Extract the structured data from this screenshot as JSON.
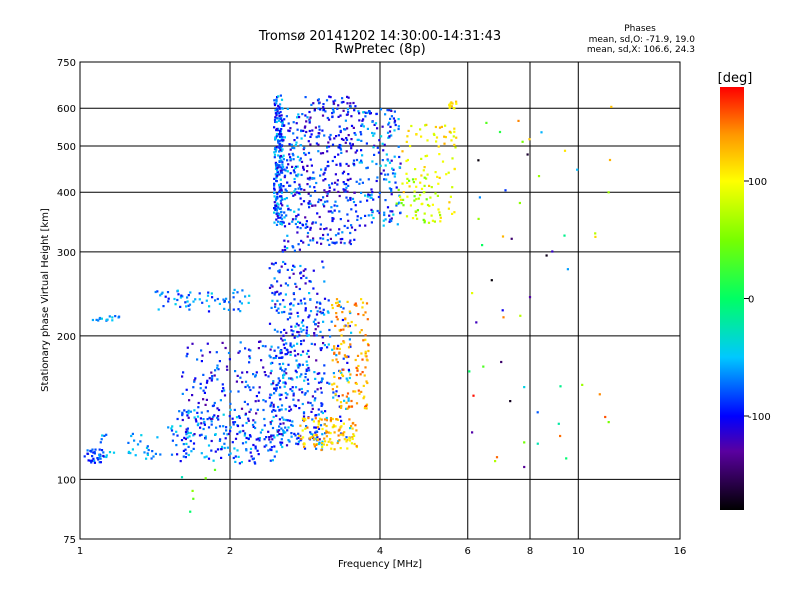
{
  "chart_data": {
    "type": "scatter",
    "title": "Tromsø 20141202 14:30:00-14:31:43",
    "subtitle": "RwPretec (8p)",
    "xlabel": "Frequency [MHz]",
    "ylabel": "Stationary phase Virtual Height [km]",
    "x_scale": "log",
    "y_scale": "log",
    "xlim": [
      1,
      16
    ],
    "ylim": [
      75,
      750
    ],
    "x_ticks": [
      1,
      2,
      4,
      6,
      8,
      10,
      16
    ],
    "y_ticks": [
      75,
      100,
      200,
      300,
      400,
      500,
      600,
      750
    ],
    "x_grid": [
      1,
      2,
      4,
      6,
      8,
      10,
      16
    ],
    "y_grid": [
      100,
      200,
      300,
      400,
      500,
      600,
      750
    ],
    "grid": true,
    "stats": {
      "header": "Phases",
      "line_o": "mean, sd,O: -71.9, 19.0",
      "line_x": "mean, sd,X: 106.6, 24.3"
    },
    "colorbar": {
      "label": "[deg]",
      "range": [
        -180,
        180
      ],
      "ticks": [
        100,
        0,
        -100
      ],
      "tick_labels": [
        "100",
        "0",
        "-100"
      ],
      "stops": [
        {
          "value": -180,
          "color": "#000000"
        },
        {
          "value": -130,
          "color": "#5a00a0"
        },
        {
          "value": -100,
          "color": "#0000ff"
        },
        {
          "value": -50,
          "color": "#00c8ff"
        },
        {
          "value": 0,
          "color": "#00ff64"
        },
        {
          "value": 50,
          "color": "#78ff00"
        },
        {
          "value": 100,
          "color": "#ffff00"
        },
        {
          "value": 140,
          "color": "#ff9600"
        },
        {
          "value": 180,
          "color": "#ff0000"
        }
      ]
    },
    "clusters": [
      {
        "f": [
          2.45,
          2.55
        ],
        "h": [
          340,
          640
        ],
        "phase": [
          -120,
          -40
        ],
        "n": 220
      },
      {
        "f": [
          2.55,
          2.8
        ],
        "h": [
          300,
          600
        ],
        "phase": [
          -120,
          -40
        ],
        "n": 130
      },
      {
        "f": [
          2.8,
          3.6
        ],
        "h": [
          310,
          640
        ],
        "phase": [
          -130,
          -60
        ],
        "n": 320
      },
      {
        "f": [
          3.6,
          4.4
        ],
        "h": [
          340,
          600
        ],
        "phase": [
          -120,
          -40
        ],
        "n": 170
      },
      {
        "f": [
          4.4,
          5.7
        ],
        "h": [
          345,
          560
        ],
        "phase": [
          80,
          130
        ],
        "n": 80
      },
      {
        "f": [
          4.3,
          5.3
        ],
        "h": [
          345,
          430
        ],
        "phase": [
          40,
          100
        ],
        "n": 45
      },
      {
        "f": [
          1.02,
          1.12
        ],
        "h": [
          108,
          116
        ],
        "phase": [
          -110,
          -60
        ],
        "n": 35
      },
      {
        "f": [
          1.1,
          1.45
        ],
        "h": [
          110,
          125
        ],
        "phase": [
          -80,
          -40
        ],
        "n": 35
      },
      {
        "f": [
          1.5,
          2.6
        ],
        "h": [
          108,
          140
        ],
        "phase": [
          -110,
          -40
        ],
        "n": 160
      },
      {
        "f": [
          1.6,
          2.5
        ],
        "h": [
          120,
          195
        ],
        "phase": [
          -130,
          -60
        ],
        "n": 200
      },
      {
        "f": [
          2.4,
          3.1
        ],
        "h": [
          115,
          290
        ],
        "phase": [
          -130,
          -50
        ],
        "n": 280
      },
      {
        "f": [
          2.5,
          3.5
        ],
        "h": [
          118,
          240
        ],
        "phase": [
          -110,
          -40
        ],
        "n": 180
      },
      {
        "f": [
          2.75,
          3.6
        ],
        "h": [
          115,
          135
        ],
        "phase": [
          90,
          150
        ],
        "n": 110
      },
      {
        "f": [
          3.2,
          3.8
        ],
        "h": [
          140,
          240
        ],
        "phase": [
          110,
          160
        ],
        "n": 130
      },
      {
        "f": [
          1.4,
          2.2
        ],
        "h": [
          225,
          250
        ],
        "phase": [
          -100,
          -40
        ],
        "n": 65
      },
      {
        "f": [
          1.05,
          1.2
        ],
        "h": [
          215,
          222
        ],
        "phase": [
          -80,
          -40
        ],
        "n": 15
      },
      {
        "f": [
          5.5,
          5.7
        ],
        "h": [
          600,
          630
        ],
        "phase": [
          90,
          130
        ],
        "n": 14
      },
      {
        "f": [
          6.0,
          12.0
        ],
        "h": [
          100,
          640
        ],
        "phase": [
          -180,
          180
        ],
        "n": 55
      },
      {
        "f": [
          1.6,
          2.0
        ],
        "h": [
          85,
          105
        ],
        "phase": [
          -100,
          100
        ],
        "n": 6
      }
    ]
  }
}
